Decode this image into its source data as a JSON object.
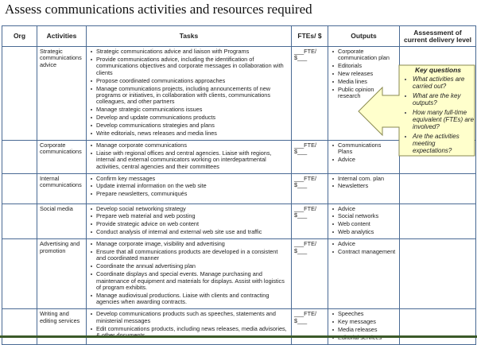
{
  "title": "Assess communications activities and resources required",
  "headers": [
    "Org",
    "Activities",
    "Tasks",
    "FTEs/ $",
    "Outputs",
    "Assessment of current delivery level"
  ],
  "fte_placeholder": {
    "fte": "___FTE/",
    "dollar": "$___"
  },
  "rows": [
    {
      "activity": "Strategic communications advice",
      "tasks": [
        "Strategic communications advice and liaison with Programs",
        "Provide communications advice, including the identification of communications objectives and corporate messages in collaboration with clients",
        "Propose coordinated communications approaches",
        "Manage communications projects, including announcements of new programs or initiatives, in collaboration with clients, communications colleagues, and other partners",
        "Manage strategic communications issues",
        "Develop and update communications products",
        "Develop communications strategies and plans",
        "Write editorials, news releases and media lines"
      ],
      "outputs": [
        "Corporate communication plan",
        "Editorials",
        "New releases",
        "Media lines",
        "Public opinion research"
      ]
    },
    {
      "activity": "Corporate communications",
      "tasks": [
        "Manage corporate communications",
        "Liaise with regional offices and central agencies. Liaise with regions, internal and external communicators working on interdepartmental activities, central agencies and their committees"
      ],
      "outputs": [
        "Communications Plans",
        "Advice"
      ]
    },
    {
      "activity": "Internal communications",
      "tasks": [
        "Confirm key messages",
        "Update internal information on the web site",
        "Prepare newsletters, communiqués"
      ],
      "outputs": [
        "Internal com. plan",
        "Newsletters"
      ]
    },
    {
      "activity": "Social media",
      "tasks": [
        "Develop social networking strategy",
        "Prepare web material and web posting",
        "Provide strategic advice on web content",
        "Conduct analysis of internal and external web site use and traffic"
      ],
      "outputs": [
        "Advice",
        "Social networks",
        "Web content",
        "Web analytics"
      ]
    },
    {
      "activity": "Advertising and promotion",
      "tasks": [
        "Manage corporate image, visibility and advertising",
        "Ensure that all communications products are developed in a consistent and coordinated manner",
        "Coordinate the annual advertising plan",
        "Coordinate displays and special events. Manage purchasing and maintenance of equipment and materials for displays. Assist with logistics of program exhibits.",
        "Manage audiovisual productions. Liaise with clients and contracting agencies when awarding contracts."
      ],
      "outputs": [
        "Advice",
        "Contract management"
      ]
    },
    {
      "activity": "Writing and editing services",
      "tasks": [
        "Develop communications products such as speeches, statements and ministerial messages",
        "Edit communications products, including news releases, media advisories, & other documents"
      ],
      "outputs": [
        "Speeches",
        "Key messages",
        "Media releases",
        "Editorial services"
      ]
    }
  ],
  "callout": {
    "title": "Key questions",
    "items": [
      "What activities are carried out?",
      "What are the key outputs?",
      "How many full-time equivalent (FTEs) are involved?",
      "Are the activities meeting expectations?"
    ],
    "fill": "#ffffcc",
    "stroke": "#8a8a50"
  }
}
